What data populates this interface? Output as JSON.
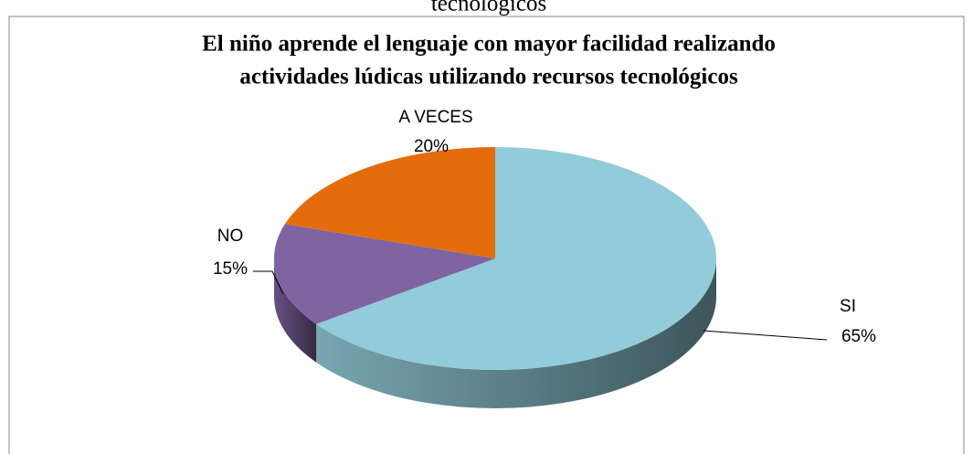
{
  "header_text": "tecnológicos",
  "chart_data": {
    "type": "pie3d",
    "title": [
      "El niño aprende el lenguaje con mayor facilidad realizando",
      "actividades lúdicas utilizando recursos tecnológicos"
    ],
    "categories": [
      "SI",
      "NO",
      "A VECES"
    ],
    "values": [
      65,
      15,
      20
    ],
    "value_labels": [
      "65%",
      "15%",
      "20%"
    ],
    "colors": [
      "#92cbd9",
      "#8064a2",
      "#e46c0a"
    ]
  }
}
